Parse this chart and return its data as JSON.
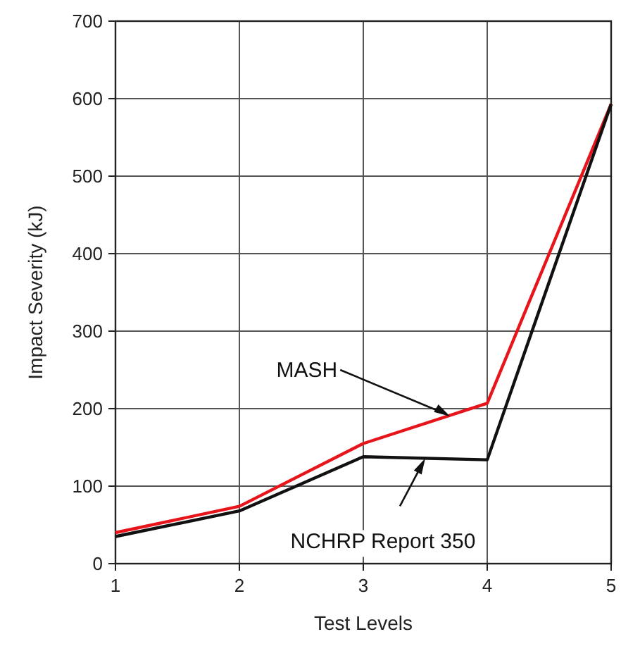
{
  "chart_data": {
    "type": "line",
    "xlabel": "Test Levels",
    "ylabel": "Impact Severity (kJ)",
    "x": [
      1,
      2,
      3,
      4,
      5
    ],
    "series": [
      {
        "color": "#e8141b",
        "values": [
          40,
          74,
          155,
          207,
          593
        ]
      },
      {
        "color": "#111111",
        "values": [
          35,
          68,
          138,
          134,
          593
        ]
      }
    ],
    "annotations": [
      {
        "text": "MASH",
        "x": 3.7,
        "y": 190
      },
      {
        "text": "NCHRP Report 350",
        "x": 3.5,
        "y": 136
      }
    ],
    "xlim": [
      1,
      5
    ],
    "xticks": [
      1,
      2,
      3,
      4,
      5
    ],
    "ylim": [
      0,
      700
    ],
    "yticks": [
      0,
      100,
      200,
      300,
      400,
      500,
      600,
      700
    ],
    "grid": true,
    "marker": "none",
    "line_style": "solid"
  }
}
